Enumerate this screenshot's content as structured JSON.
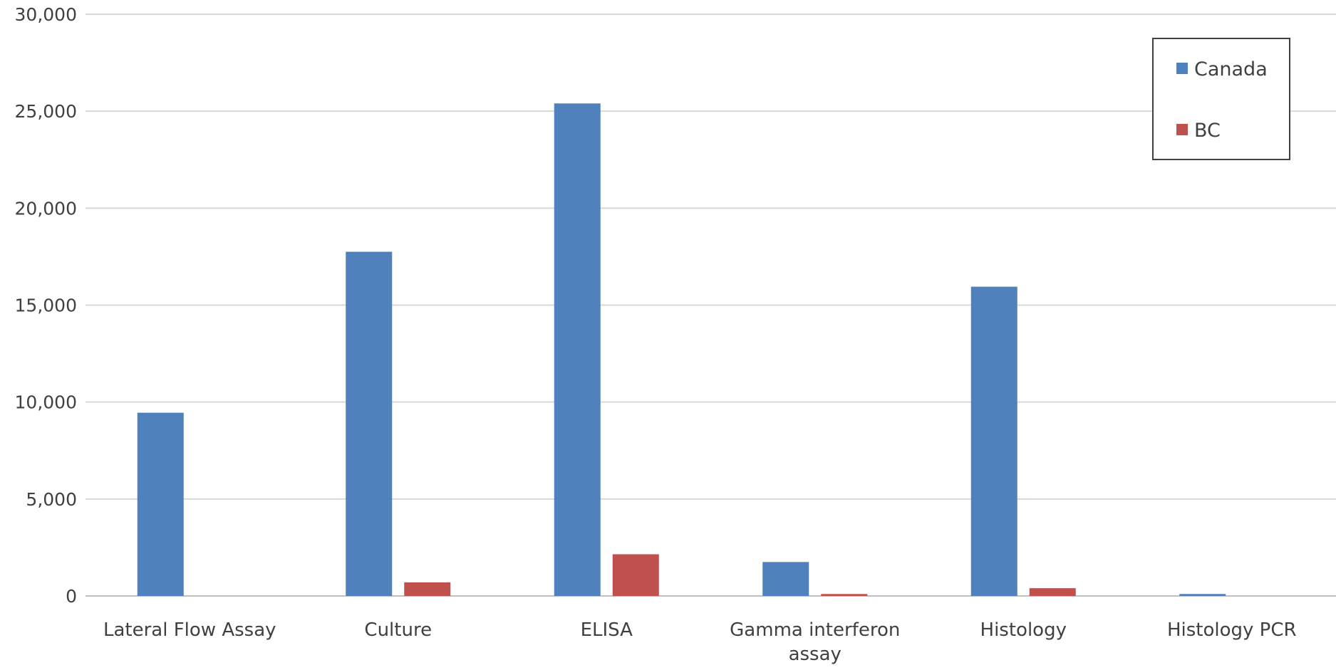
{
  "chart_data": {
    "type": "bar",
    "categories": [
      "Lateral Flow Assay",
      "Culture",
      "ELISA",
      "Gamma interferon assay",
      "Histology",
      "Histology PCR"
    ],
    "category_lines": [
      [
        "Lateral Flow Assay"
      ],
      [
        "Culture"
      ],
      [
        "ELISA"
      ],
      [
        "Gamma interferon",
        "assay"
      ],
      [
        "Histology"
      ],
      [
        "Histology PCR"
      ]
    ],
    "series": [
      {
        "name": "Canada",
        "color": "#4f81bd",
        "values": [
          9450,
          17750,
          25400,
          1750,
          15950,
          100
        ]
      },
      {
        "name": "BC",
        "color": "#c0504d",
        "values": [
          0,
          700,
          2150,
          100,
          400,
          0
        ]
      }
    ],
    "ylim": [
      0,
      30000
    ],
    "yticks": [
      0,
      5000,
      10000,
      15000,
      20000,
      25000,
      30000
    ],
    "ytick_labels": [
      "0",
      "5,000",
      "10,000",
      "15,000",
      "20,000",
      "25,000",
      "30,000"
    ],
    "grid": true,
    "legend_position": "top-right",
    "gridline_color": "#d9d9d9",
    "axis_line_color": "#bfbfbf",
    "title": "",
    "xlabel": "",
    "ylabel": ""
  }
}
